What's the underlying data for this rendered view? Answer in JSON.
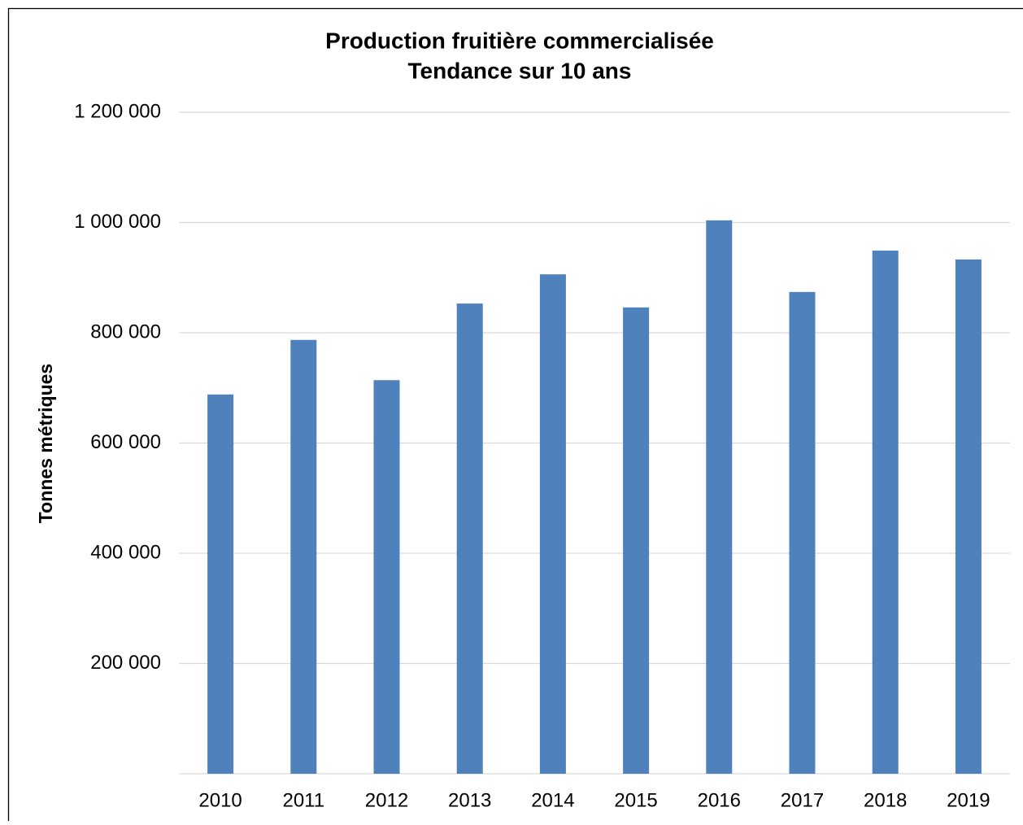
{
  "chart_data": {
    "type": "bar",
    "title": "Production fruitière commercialisée",
    "subtitle": "Tendance sur 10 ans",
    "y_label": "Tonnes métriques",
    "categories": [
      "2010",
      "2011",
      "2012",
      "2013",
      "2014",
      "2015",
      "2016",
      "2017",
      "2018",
      "2019"
    ],
    "values": [
      688000,
      787000,
      714000,
      853000,
      906000,
      846000,
      1004000,
      874000,
      949000,
      933000
    ],
    "color": "#4f81bd",
    "ylim": [
      0,
      1200000
    ],
    "yticks": [
      {
        "value": 200000,
        "label": "200 000"
      },
      {
        "value": 400000,
        "label": "400 000"
      },
      {
        "value": 600000,
        "label": "600 000"
      },
      {
        "value": 800000,
        "label": "800 000"
      },
      {
        "value": 1000000,
        "label": "1 000 000"
      },
      {
        "value": 1200000,
        "label": "1 200 000"
      }
    ],
    "grid": true
  }
}
